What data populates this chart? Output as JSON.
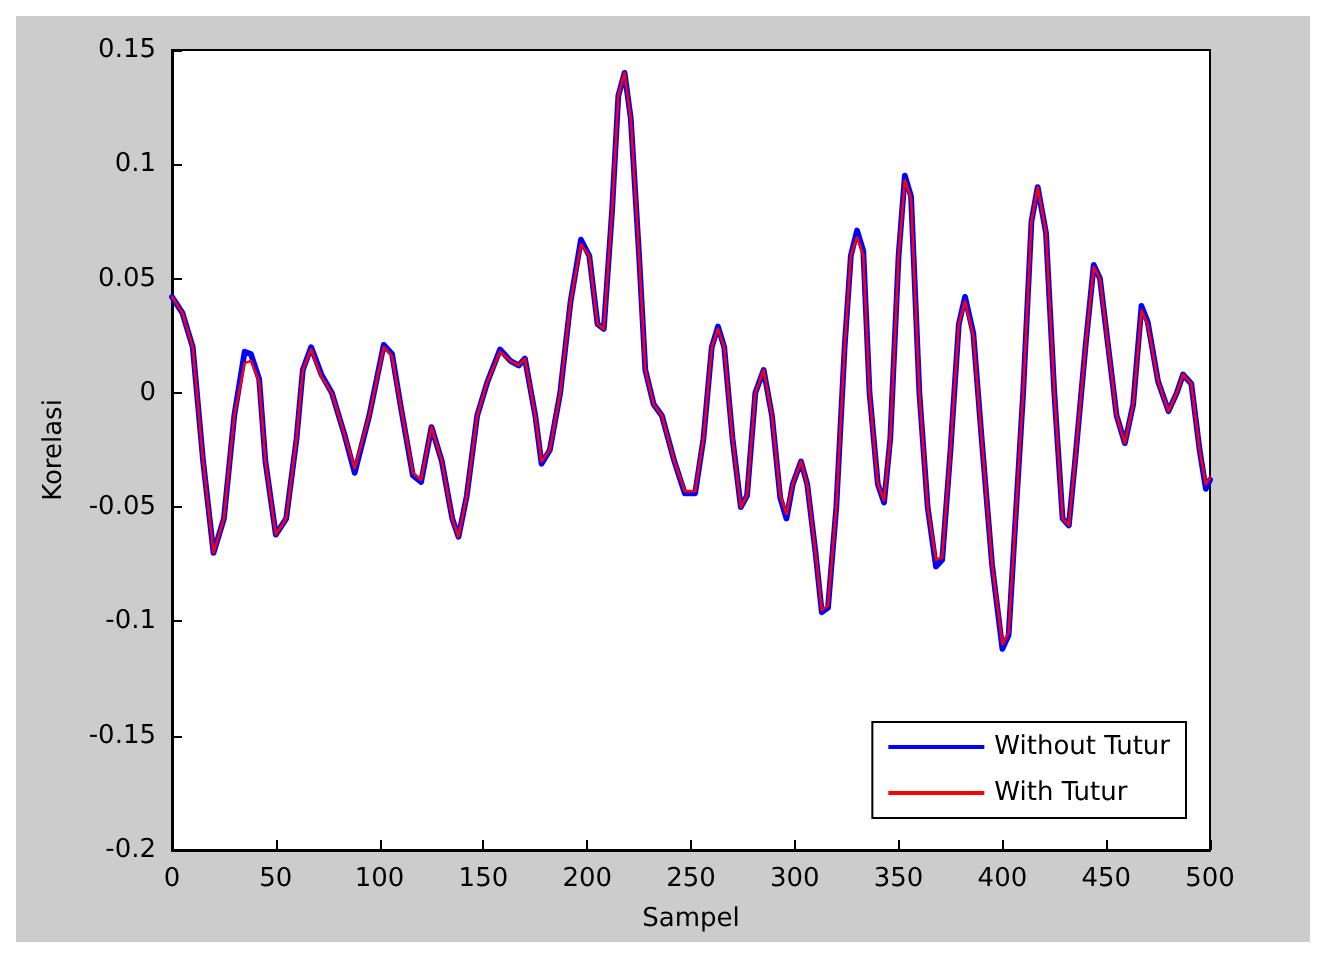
{
  "chart_data": {
    "type": "line",
    "xlabel": "Sampel",
    "ylabel": "Korelasi",
    "x": [
      0,
      5,
      10,
      15,
      20,
      25,
      30,
      35,
      38,
      42,
      45,
      50,
      55,
      60,
      63,
      67,
      72,
      77,
      83,
      88,
      95,
      102,
      106,
      110,
      116,
      120,
      125,
      130,
      135,
      138,
      142,
      147,
      152,
      158,
      163,
      167,
      170,
      175,
      178,
      182,
      187,
      192,
      197,
      201,
      205,
      208,
      212,
      215,
      218,
      221,
      225,
      228,
      232,
      236,
      242,
      247,
      252,
      256,
      260,
      263,
      266,
      270,
      274,
      277,
      281,
      285,
      289,
      293,
      296,
      299,
      303,
      306,
      310,
      313,
      316,
      320,
      324,
      327,
      330,
      333,
      336,
      340,
      343,
      346,
      350,
      353,
      356,
      360,
      364,
      368,
      371,
      375,
      379,
      382,
      386,
      390,
      395,
      400,
      403,
      406,
      410,
      414,
      417,
      421,
      425,
      429,
      432,
      435,
      440,
      444,
      447,
      451,
      455,
      459,
      463,
      467,
      470,
      475,
      480,
      484,
      487,
      491,
      495,
      498,
      500
    ],
    "series": [
      {
        "name": "Without Tutur",
        "color": "#0000ff",
        "values": [
          0.042,
          0.035,
          0.02,
          -0.03,
          -0.07,
          -0.055,
          -0.01,
          0.018,
          0.017,
          0.006,
          -0.03,
          -0.062,
          -0.055,
          -0.02,
          0.01,
          0.02,
          0.008,
          0.0,
          -0.018,
          -0.035,
          -0.01,
          0.021,
          0.017,
          -0.005,
          -0.036,
          -0.039,
          -0.015,
          -0.03,
          -0.055,
          -0.063,
          -0.045,
          -0.01,
          0.005,
          0.019,
          0.014,
          0.012,
          0.015,
          -0.01,
          -0.031,
          -0.025,
          0.0,
          0.04,
          0.067,
          0.06,
          0.03,
          0.028,
          0.08,
          0.13,
          0.14,
          0.12,
          0.06,
          0.01,
          -0.005,
          -0.01,
          -0.03,
          -0.044,
          -0.044,
          -0.02,
          0.02,
          0.029,
          0.02,
          -0.02,
          -0.05,
          -0.045,
          0.0,
          0.01,
          -0.01,
          -0.046,
          -0.055,
          -0.04,
          -0.03,
          -0.04,
          -0.07,
          -0.096,
          -0.094,
          -0.05,
          0.02,
          0.06,
          0.071,
          0.062,
          0.0,
          -0.04,
          -0.048,
          -0.02,
          0.06,
          0.095,
          0.086,
          0.0,
          -0.05,
          -0.076,
          -0.073,
          -0.025,
          0.03,
          0.042,
          0.026,
          -0.02,
          -0.075,
          -0.112,
          -0.106,
          -0.06,
          0.0,
          0.075,
          0.09,
          0.07,
          0.0,
          -0.055,
          -0.058,
          -0.03,
          0.02,
          0.056,
          0.05,
          0.02,
          -0.01,
          -0.022,
          -0.005,
          0.038,
          0.031,
          0.005,
          -0.008,
          0.0,
          0.008,
          0.004,
          -0.025,
          -0.042,
          -0.038
        ]
      },
      {
        "name": "With Tutur",
        "color": "#ff0000",
        "values": [
          0.042,
          0.035,
          0.02,
          -0.03,
          -0.07,
          -0.055,
          -0.01,
          0.013,
          0.014,
          0.005,
          -0.03,
          -0.062,
          -0.055,
          -0.02,
          0.01,
          0.019,
          0.007,
          0.0,
          -0.018,
          -0.033,
          -0.01,
          0.02,
          0.016,
          -0.005,
          -0.035,
          -0.038,
          -0.015,
          -0.03,
          -0.055,
          -0.063,
          -0.045,
          -0.01,
          0.005,
          0.018,
          0.014,
          0.012,
          0.015,
          -0.01,
          -0.03,
          -0.025,
          0.0,
          0.04,
          0.065,
          0.06,
          0.03,
          0.028,
          0.08,
          0.13,
          0.14,
          0.12,
          0.06,
          0.01,
          -0.005,
          -0.01,
          -0.03,
          -0.043,
          -0.043,
          -0.02,
          0.02,
          0.028,
          0.02,
          -0.02,
          -0.05,
          -0.045,
          0.0,
          0.01,
          -0.01,
          -0.045,
          -0.053,
          -0.04,
          -0.03,
          -0.04,
          -0.07,
          -0.095,
          -0.093,
          -0.05,
          0.02,
          0.06,
          0.068,
          0.06,
          0.0,
          -0.04,
          -0.047,
          -0.02,
          0.06,
          0.093,
          0.085,
          0.0,
          -0.05,
          -0.073,
          -0.072,
          -0.025,
          0.03,
          0.04,
          0.025,
          -0.02,
          -0.075,
          -0.11,
          -0.105,
          -0.06,
          0.0,
          0.075,
          0.09,
          0.07,
          0.0,
          -0.055,
          -0.058,
          -0.03,
          0.02,
          0.055,
          0.05,
          0.02,
          -0.01,
          -0.022,
          -0.005,
          0.036,
          0.03,
          0.005,
          -0.008,
          0.0,
          0.008,
          0.004,
          -0.025,
          -0.04,
          -0.037
        ]
      }
    ],
    "xlim": [
      0,
      500
    ],
    "xticks": [
      0,
      50,
      100,
      150,
      200,
      250,
      300,
      350,
      400,
      450,
      500
    ],
    "ylim": [
      -0.2,
      0.15
    ],
    "yticks": [
      -0.2,
      -0.15,
      -0.1,
      -0.05,
      0,
      0.05,
      0.1,
      0.15
    ],
    "grid": false,
    "legend": "bottom right",
    "marker": "none",
    "line_style": "solid"
  }
}
